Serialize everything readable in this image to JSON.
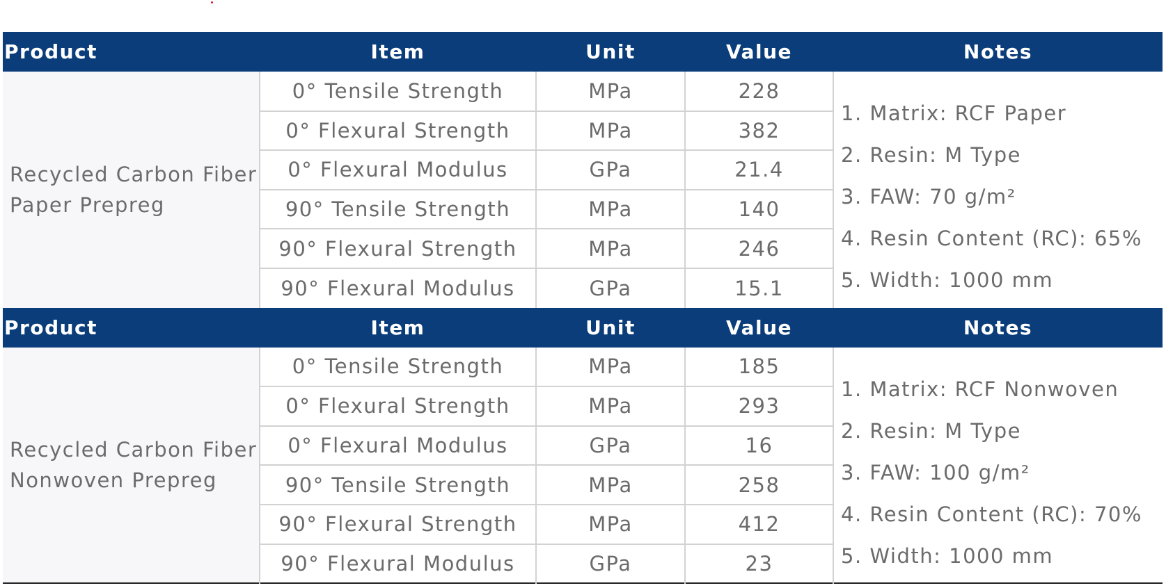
{
  "headers": {
    "product": "Product",
    "item": "Item",
    "unit": "Unit",
    "value": "Value",
    "notes": "Notes"
  },
  "sections": [
    {
      "product_lines": [
        "Recycled Carbon Fiber",
        "Paper Prepreg"
      ],
      "rows": [
        {
          "item": "0° Tensile Strength",
          "unit": "MPa",
          "value": "228"
        },
        {
          "item": "0° Flexural Strength",
          "unit": "MPa",
          "value": "382"
        },
        {
          "item": "0° Flexural Modulus",
          "unit": "GPa",
          "value": "21.4"
        },
        {
          "item": "90° Tensile Strength",
          "unit": "MPa",
          "value": "140"
        },
        {
          "item": "90° Flexural Strength",
          "unit": "MPa",
          "value": "246"
        },
        {
          "item": "90° Flexural Modulus",
          "unit": "GPa",
          "value": "15.1"
        }
      ],
      "notes": [
        "1. Matrix: RCF Paper",
        "2. Resin: M Type",
        "3. FAW: 70 g/m²",
        "4. Resin Content (RC): 65%",
        "5. Width: 1000 mm"
      ]
    },
    {
      "product_lines": [
        "Recycled Carbon Fiber",
        "Nonwoven Prepreg"
      ],
      "rows": [
        {
          "item": "0° Tensile Strength",
          "unit": "MPa",
          "value": "185"
        },
        {
          "item": "0° Flexural Strength",
          "unit": "MPa",
          "value": "293"
        },
        {
          "item": "0° Flexural Modulus",
          "unit": "GPa",
          "value": "16"
        },
        {
          "item": "90° Tensile Strength",
          "unit": "MPa",
          "value": "258"
        },
        {
          "item": "90° Flexural Strength",
          "unit": "MPa",
          "value": "412"
        },
        {
          "item": "90° Flexural Modulus",
          "unit": "GPa",
          "value": "23"
        }
      ],
      "notes": [
        "1. Matrix: RCF Nonwoven",
        "2. Resin: M Type",
        "3. FAW: 100 g/m²",
        "4. Resin Content (RC): 70%",
        "5. Width: 1000 mm"
      ]
    }
  ],
  "colors": {
    "header_bg": "#0a3d7a",
    "header_text": "#ffffff",
    "body_text": "#6b6b6b",
    "grid": "#d2d2d2",
    "product_bg": "#f7f7fa"
  }
}
